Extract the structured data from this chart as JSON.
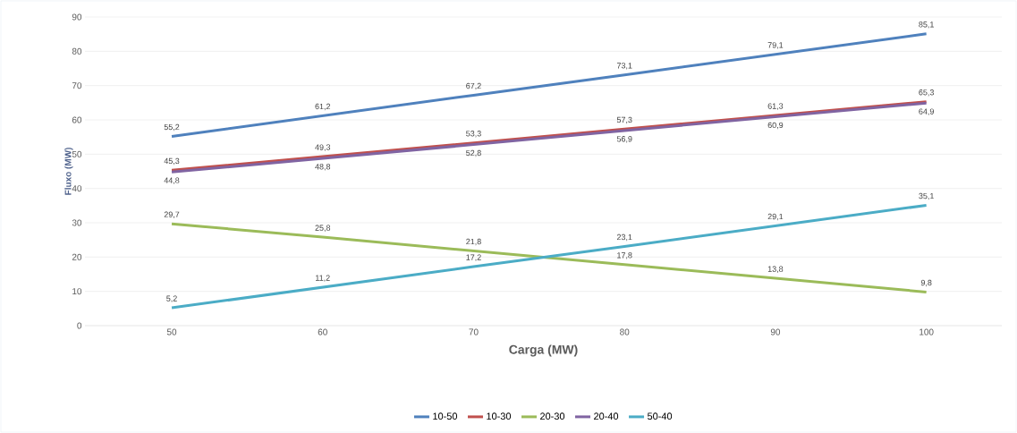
{
  "chart_data": {
    "type": "line",
    "xlabel": "Carga (MW)",
    "ylabel": "Fluxo (MW)",
    "categories": [
      "50",
      "60",
      "70",
      "80",
      "90",
      "100"
    ],
    "series": [
      {
        "name": "10-50",
        "color": "#4f81bd",
        "values": [
          55.2,
          61.2,
          67.2,
          73.1,
          79.1,
          85.1
        ],
        "value_labels": [
          "55,2",
          "61,2",
          "67,2",
          "73,1",
          "79,1",
          "85,1"
        ]
      },
      {
        "name": "10-30",
        "color": "#c0504d",
        "values": [
          45.3,
          49.3,
          53.3,
          57.3,
          61.3,
          65.3
        ],
        "value_labels": [
          "45,3",
          "49,3",
          "53,3",
          "57,3",
          "61,3",
          "65,3"
        ]
      },
      {
        "name": "20-30",
        "color": "#9bbb59",
        "values": [
          29.7,
          25.8,
          21.8,
          17.8,
          13.8,
          9.8
        ],
        "value_labels": [
          "29,7",
          "25,8",
          "21,8",
          "17,8",
          "13,8",
          "9,8"
        ]
      },
      {
        "name": "20-40",
        "color": "#8064a2",
        "values": [
          44.8,
          48.8,
          52.8,
          56.9,
          60.9,
          64.9
        ],
        "value_labels": [
          "44,8",
          "48,8",
          "52,8",
          "56,9",
          "60,9",
          "64,9"
        ]
      },
      {
        "name": "50-40",
        "color": "#4bacc6",
        "values": [
          5.2,
          11.2,
          17.2,
          23.1,
          29.1,
          35.1
        ],
        "value_labels": [
          "5,2",
          "11,2",
          "17,2",
          "23,1",
          "29,1",
          "35,1"
        ]
      }
    ],
    "ylim": [
      0,
      90
    ],
    "yticks": [
      0,
      10,
      20,
      30,
      40,
      50,
      60,
      70,
      80,
      90
    ],
    "grid": "y",
    "legend": "bottom",
    "marker": "none",
    "line_style": "solid"
  }
}
